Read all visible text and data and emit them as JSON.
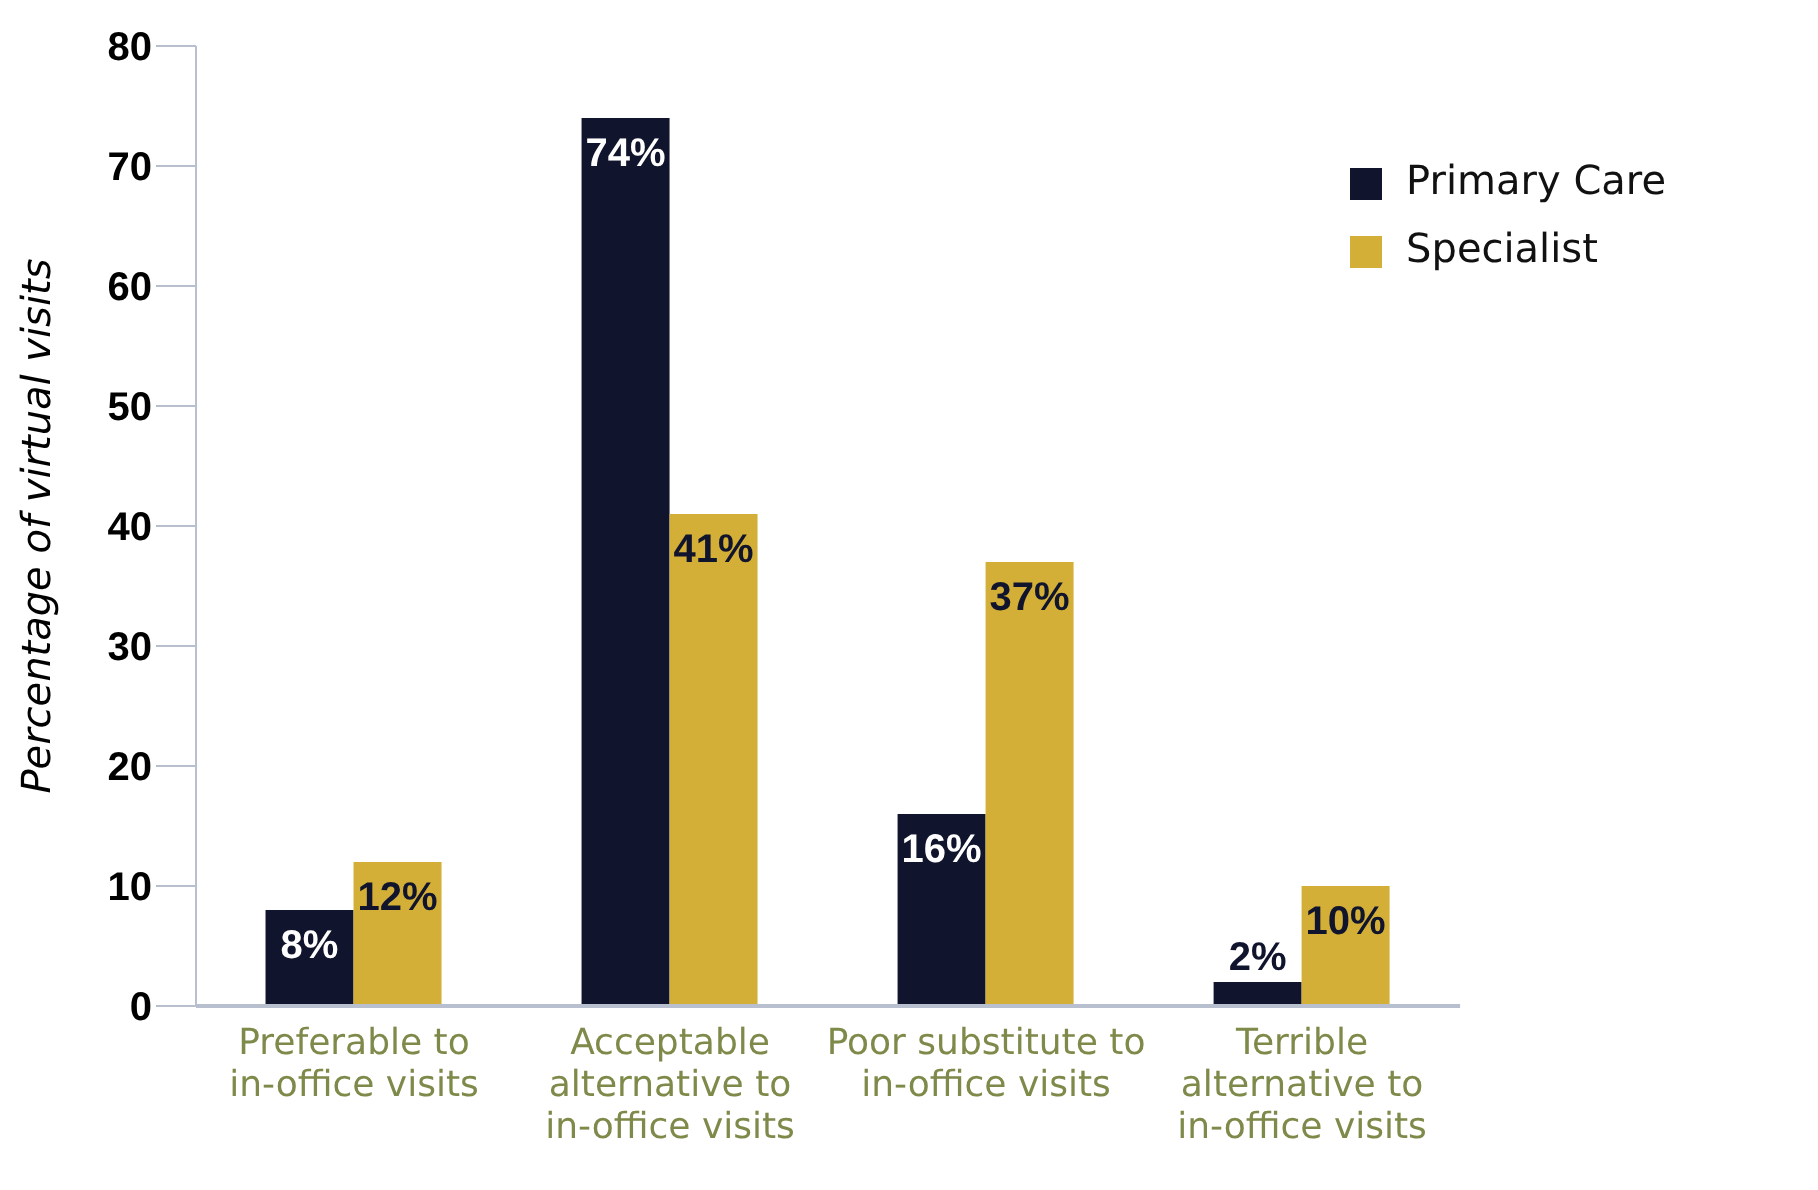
{
  "chart_data": {
    "type": "bar",
    "ylabel": "Percentage of virtual visits",
    "categories": [
      "Preferable to in-office visits",
      "Acceptable alternative to in-office visits",
      "Poor substitute to in-office visits",
      "Terrible alternative to in-office visits"
    ],
    "series": [
      {
        "name": "Primary Care",
        "color": "#10142c",
        "values": [
          8,
          74,
          16,
          2
        ],
        "value_labels": [
          "8%",
          "74%",
          "16%",
          "2%"
        ]
      },
      {
        "name": "Specialist",
        "color": "#d4af37",
        "values": [
          12,
          41,
          37,
          10
        ],
        "value_labels": [
          "12%",
          "41%",
          "37%",
          "10%"
        ]
      }
    ],
    "ylim": [
      0,
      80
    ],
    "yticks": [
      0,
      10,
      20,
      30,
      40,
      50,
      60,
      70,
      80
    ],
    "grid": false,
    "legend": "top right"
  }
}
